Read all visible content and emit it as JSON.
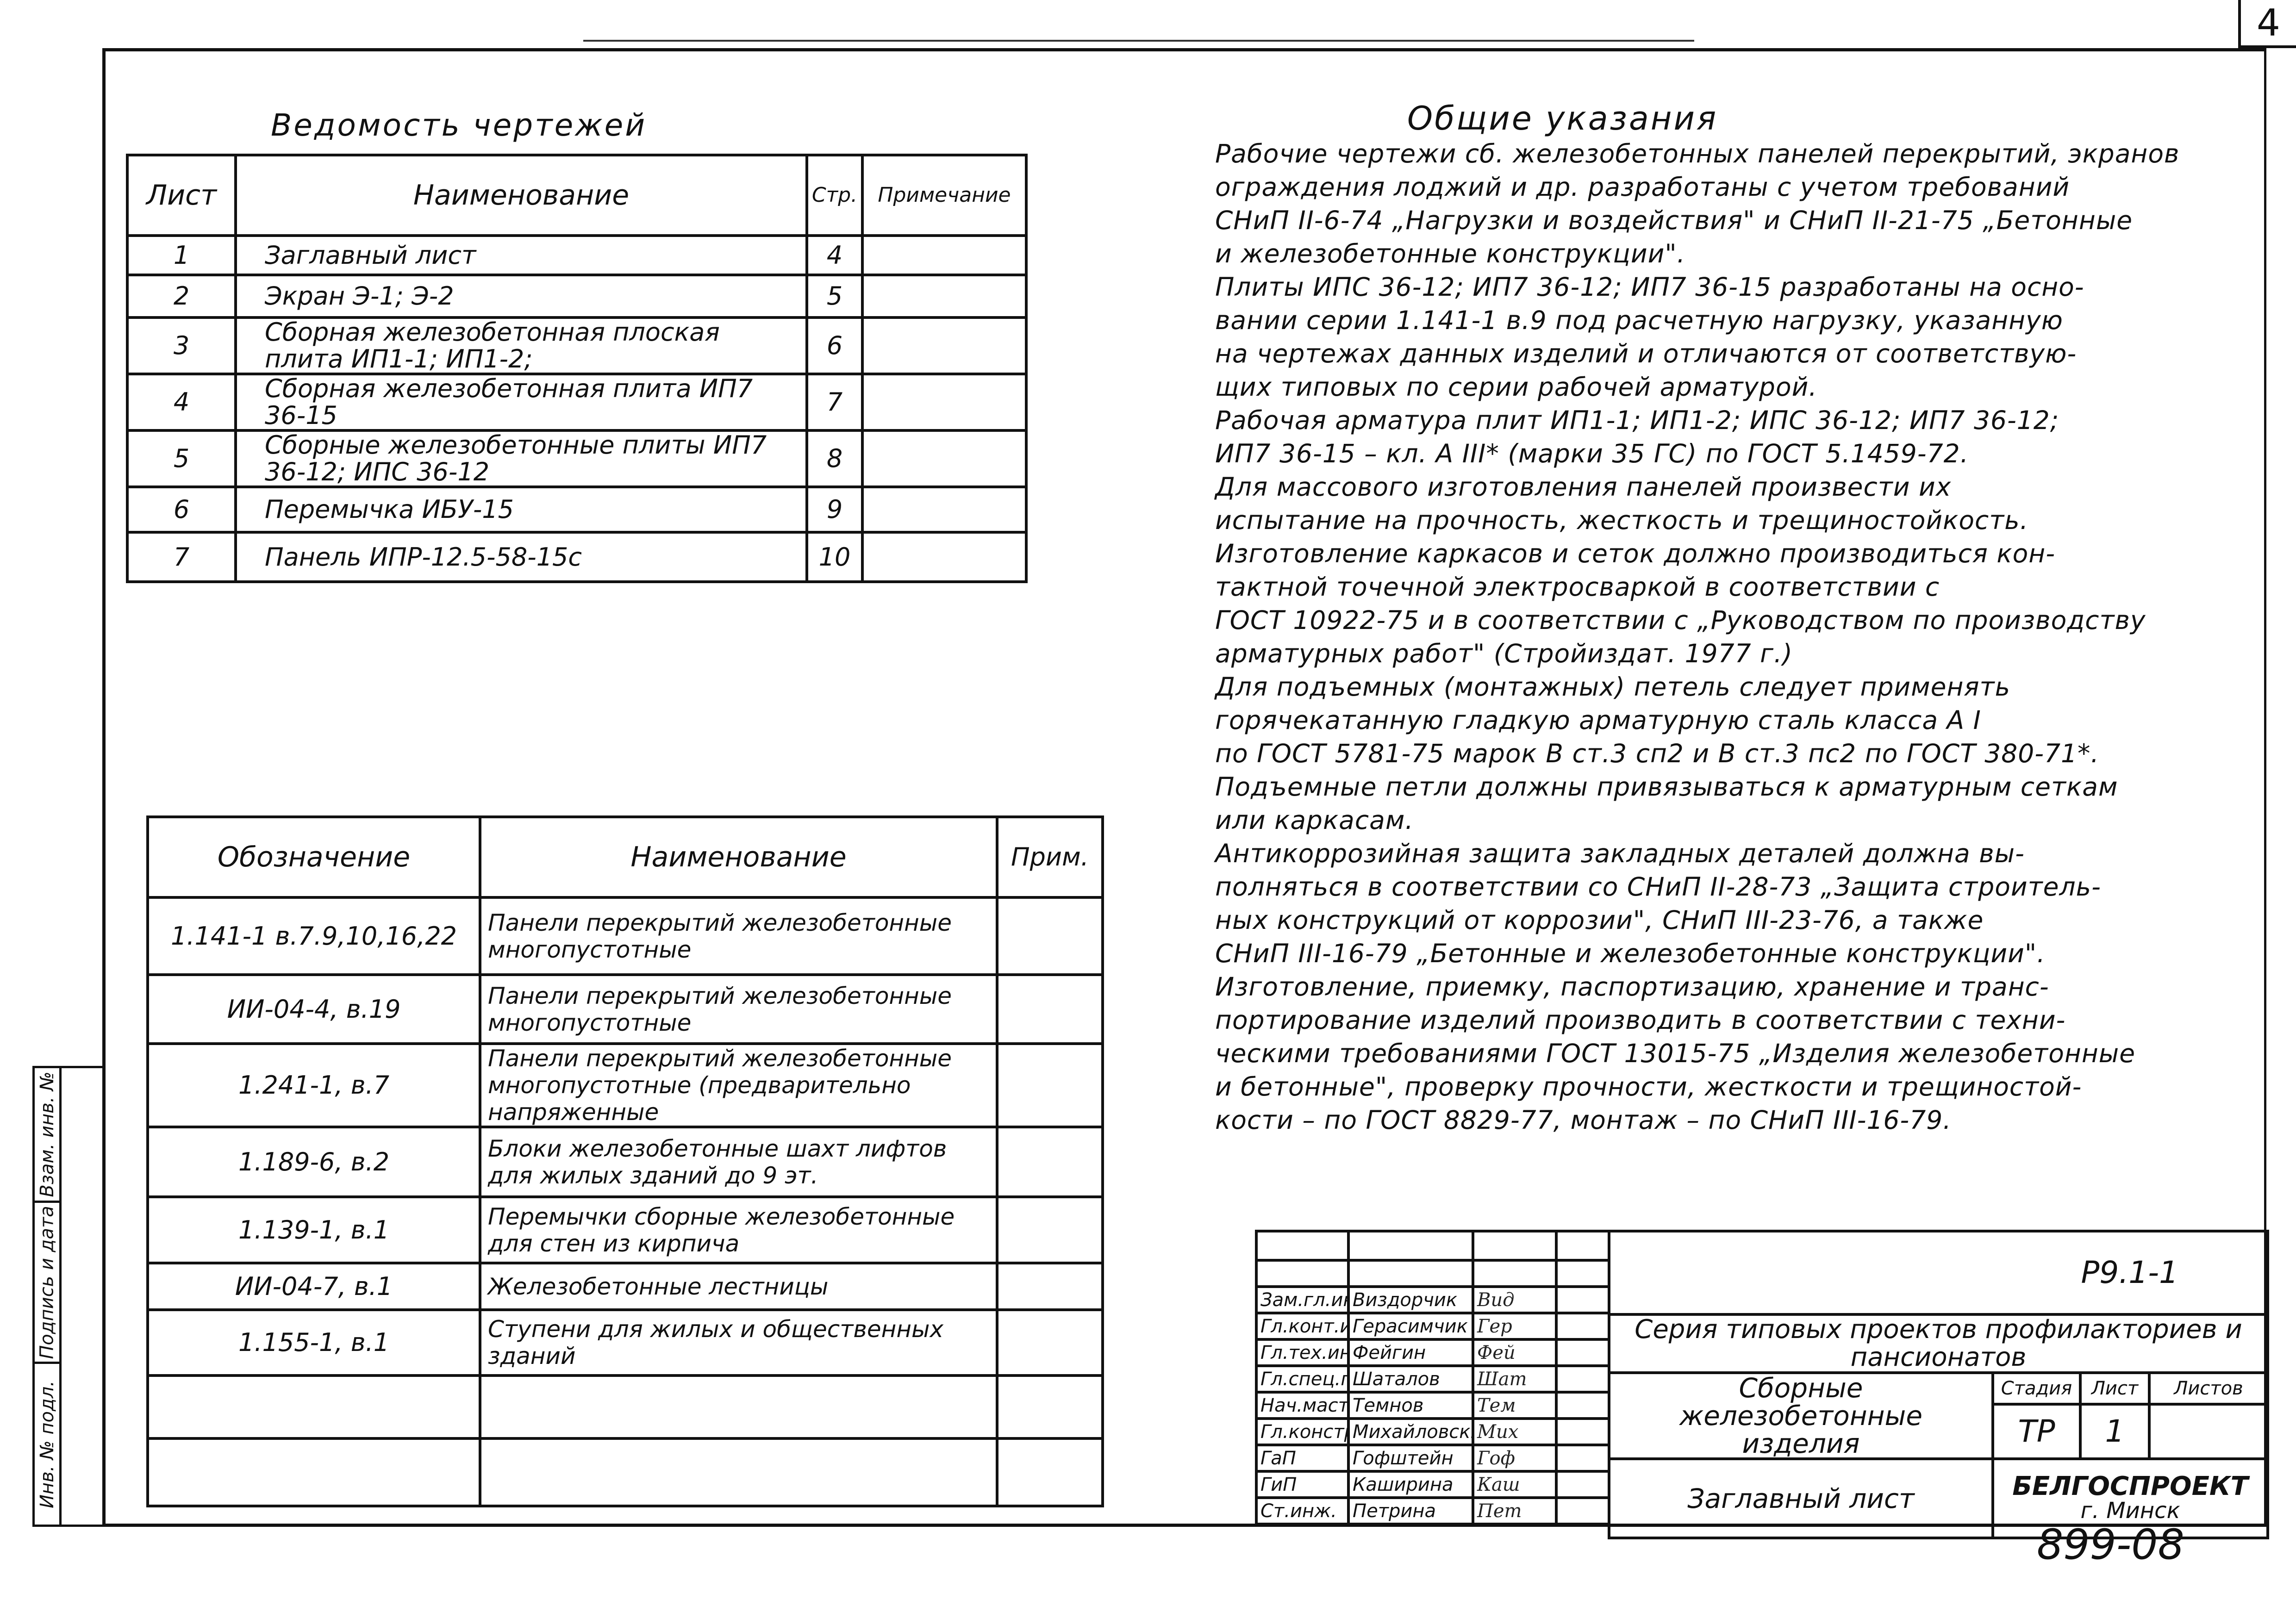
{
  "page_number": "4",
  "drawings_list": {
    "title": "Ведомость чертежей",
    "headers": [
      "Лист",
      "Наименование",
      "Стр.",
      "Примечание"
    ],
    "rows": [
      {
        "sheet": "1",
        "name": "Заглавный лист",
        "page": "4",
        "note": ""
      },
      {
        "sheet": "2",
        "name": "Экран Э-1; Э-2",
        "page": "5",
        "note": ""
      },
      {
        "sheet": "3",
        "name": "Сборная железобетонная плоская плита ИП1-1; ИП1-2;",
        "page": "6",
        "note": ""
      },
      {
        "sheet": "4",
        "name": "Сборная железобетонная плита ИП7 36-15",
        "page": "7",
        "note": ""
      },
      {
        "sheet": "5",
        "name": "Сборные железобетонные плиты ИП7 36-12; ИПС 36-12",
        "page": "8",
        "note": ""
      },
      {
        "sheet": "6",
        "name": "Перемычка ИБУ-15",
        "page": "9",
        "note": ""
      },
      {
        "sheet": "7",
        "name": "Панель ИПР-12.5-58-15с",
        "page": "10",
        "note": ""
      }
    ]
  },
  "references": {
    "headers": [
      "Обозначение",
      "Наименование",
      "Прим."
    ],
    "rows": [
      {
        "code": "1.141-1 в.7.9,10,16,22",
        "name": "Панели перекрытий железобетонные многопустотные",
        "note": ""
      },
      {
        "code": "ИИ-04-4, в.19",
        "name": "Панели перекрытий железобетонные многопустотные",
        "note": ""
      },
      {
        "code": "1.241-1, в.7",
        "name": "Панели перекрытий железобетонные многопустотные (предварительно напряженные",
        "note": ""
      },
      {
        "code": "1.189-6, в.2",
        "name": "Блоки железобетонные шахт лифтов для жилых зданий до 9 эт.",
        "note": ""
      },
      {
        "code": "1.139-1, в.1",
        "name": "Перемычки сборные железобетонные для стен из кирпича",
        "note": ""
      },
      {
        "code": "ИИ-04-7, в.1",
        "name": "Железобетонные лестницы",
        "note": ""
      },
      {
        "code": "1.155-1, в.1",
        "name": "Ступени для жилых и общественных зданий",
        "note": ""
      },
      {
        "code": "",
        "name": "",
        "note": ""
      },
      {
        "code": "",
        "name": "",
        "note": ""
      }
    ]
  },
  "general_notes": {
    "title": "Общие указания",
    "lines": [
      "Рабочие чертежи сб. железобетонных панелей перекрытий, экранов",
      "ограждения лоджий и др. разработаны с учетом требований",
      "СНиП II-6-74 „Нагрузки и воздействия\" и СНиП II-21-75 „Бетонные",
      "и железобетонные конструкции\".",
      "Плиты ИПС 36-12; ИП7 36-12; ИП7 36-15 разработаны на осно-",
      "вании серии 1.141-1 в.9 под расчетную нагрузку, указанную",
      "на чертежах данных изделий и отличаются от соответствую-",
      "щих типовых по серии рабочей арматурой.",
      "Рабочая арматура плит ИП1-1; ИП1-2; ИПС 36-12; ИП7 36-12;",
      "ИП7 36-15 – кл. А III* (марки 35 ГС) по ГОСТ 5.1459-72.",
      "Для массового изготовления панелей произвести их",
      "испытание на прочность, жесткость и трещиностойкость.",
      "Изготовление каркасов и сеток должно производиться кон-",
      "тактной точечной электросваркой в соответствии с",
      "ГОСТ 10922-75 и в соответствии с „Руководством по производству",
      "арматурных работ\" (Стройиздат. 1977 г.)",
      "Для подъемных (монтажных) петель следует применять",
      "горячекатанную гладкую арматурную сталь класса А I",
      "по ГОСТ 5781-75 марок В ст.3 сп2 и В ст.3 пс2 по ГОСТ 380-71*.",
      "Подъемные петли должны привязываться к арматурным сеткам",
      "или каркасам.",
      "Антикоррозийная защита закладных деталей должна вы-",
      "полняться в соответствии со СНиП II-28-73 „Защита строитель-",
      "ных конструкций от коррозии\", СНиП III-23-76, а также",
      "СНиП III-16-79 „Бетонные и железобетонные конструкции\".",
      "Изготовление, приемку, паспортизацию, хранение и транс-",
      "портирование изделий производить в соответствии с техни-",
      "ческими требованиями ГОСТ 13015-75 „Изделия железобетонные",
      "и бетонные\", проверку прочности, жесткости и трещиностой-",
      "кости – по ГОСТ 8829-77, монтаж – по СНиП III-16-79."
    ]
  },
  "title_block": {
    "signatories": [
      {
        "role": "Зам.гл.ин.",
        "name": "Виздорчик",
        "signature": "Вид"
      },
      {
        "role": "Гл.конт.ин.",
        "name": "Герасимчик",
        "signature": "Гер"
      },
      {
        "role": "Гл.тех.ин.",
        "name": "Фейгин",
        "signature": "Фей"
      },
      {
        "role": "Гл.спец.гл.",
        "name": "Шаталов",
        "signature": "Шат"
      },
      {
        "role": "Нач.маст.",
        "name": "Темнов",
        "signature": "Тем"
      },
      {
        "role": "Гл.констр",
        "name": "Михайловский",
        "signature": "Мих"
      },
      {
        "role": "ГаП",
        "name": "Гофштейн",
        "signature": "Гоф"
      },
      {
        "role": "ГиП",
        "name": "Каширина",
        "signature": "Каш"
      },
      {
        "role": "Ст.инж.",
        "name": "Петрина",
        "signature": "Пет"
      }
    ],
    "code": "Р9.1-1",
    "series": "Серия типовых проектов профилакториев и пансионатов",
    "product": "Сборные железобетонные изделия",
    "stage_label": "Стадия",
    "sheet_label": "Лист",
    "sheets_label": "Листов",
    "stage": "ТР",
    "sheet": "1",
    "sheets": "",
    "sheet_title": "Заглавный лист",
    "organization": "БЕЛГОСПРОЕКТ",
    "city": "г. Минск",
    "document_number": "899-08"
  },
  "side_stamp": [
    "Инв. № подл.",
    "Подпись и дата",
    "Взам. инв. №"
  ]
}
